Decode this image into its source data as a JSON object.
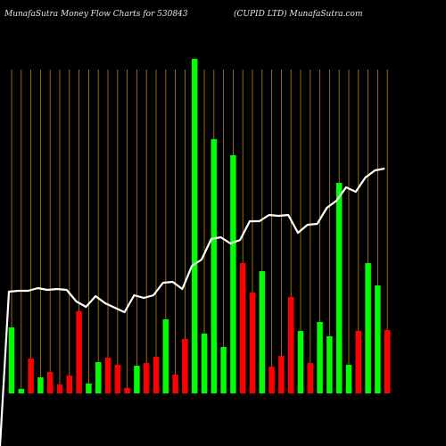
{
  "header": {
    "title_left": "MunafaSutra  Money Flow  Charts for 530843",
    "title_right": "(CUPID LTD) MunafaSutra.com"
  },
  "colors": {
    "background": "#000000",
    "up": "#00ff00",
    "down": "#ff0000",
    "line": "#ffffff",
    "grid": "#b8860b",
    "text": "#e6e6e6"
  },
  "chart_data": {
    "type": "bar",
    "grid": true,
    "axis_labels_readable": false,
    "x_count": 40,
    "y_scale": "relative (unlabeled)",
    "series": [
      {
        "kind": "bar",
        "values": [
          74,
          5,
          39,
          18,
          24,
          10,
          20,
          92,
          11,
          35,
          40,
          32,
          6,
          31,
          34,
          41,
          83,
          21,
          61,
          375,
          67,
          285,
          52,
          267,
          146,
          113,
          137,
          30,
          42,
          108,
          70,
          34,
          80,
          64,
          236,
          32,
          70,
          146,
          121,
          71
        ],
        "directions": [
          "up",
          "up",
          "down",
          "up",
          "down",
          "down",
          "down",
          "down",
          "up",
          "up",
          "down",
          "down",
          "down",
          "up",
          "down",
          "down",
          "up",
          "down",
          "down",
          "up",
          "up",
          "up",
          "up",
          "up",
          "down",
          "down",
          "up",
          "down",
          "down",
          "down",
          "up",
          "down",
          "up",
          "up",
          "up",
          "up",
          "down",
          "up",
          "up",
          "down"
        ]
      },
      {
        "kind": "line",
        "values": [
          114,
          115,
          115,
          118,
          116,
          117,
          116,
          103,
          97,
          109,
          101,
          96,
          91,
          110,
          107,
          110,
          124,
          125,
          117,
          143,
          150,
          173,
          175,
          168,
          172,
          193,
          193,
          200,
          199,
          200,
          180,
          189,
          190,
          208,
          216,
          231,
          226,
          242,
          250,
          252
        ]
      }
    ]
  }
}
